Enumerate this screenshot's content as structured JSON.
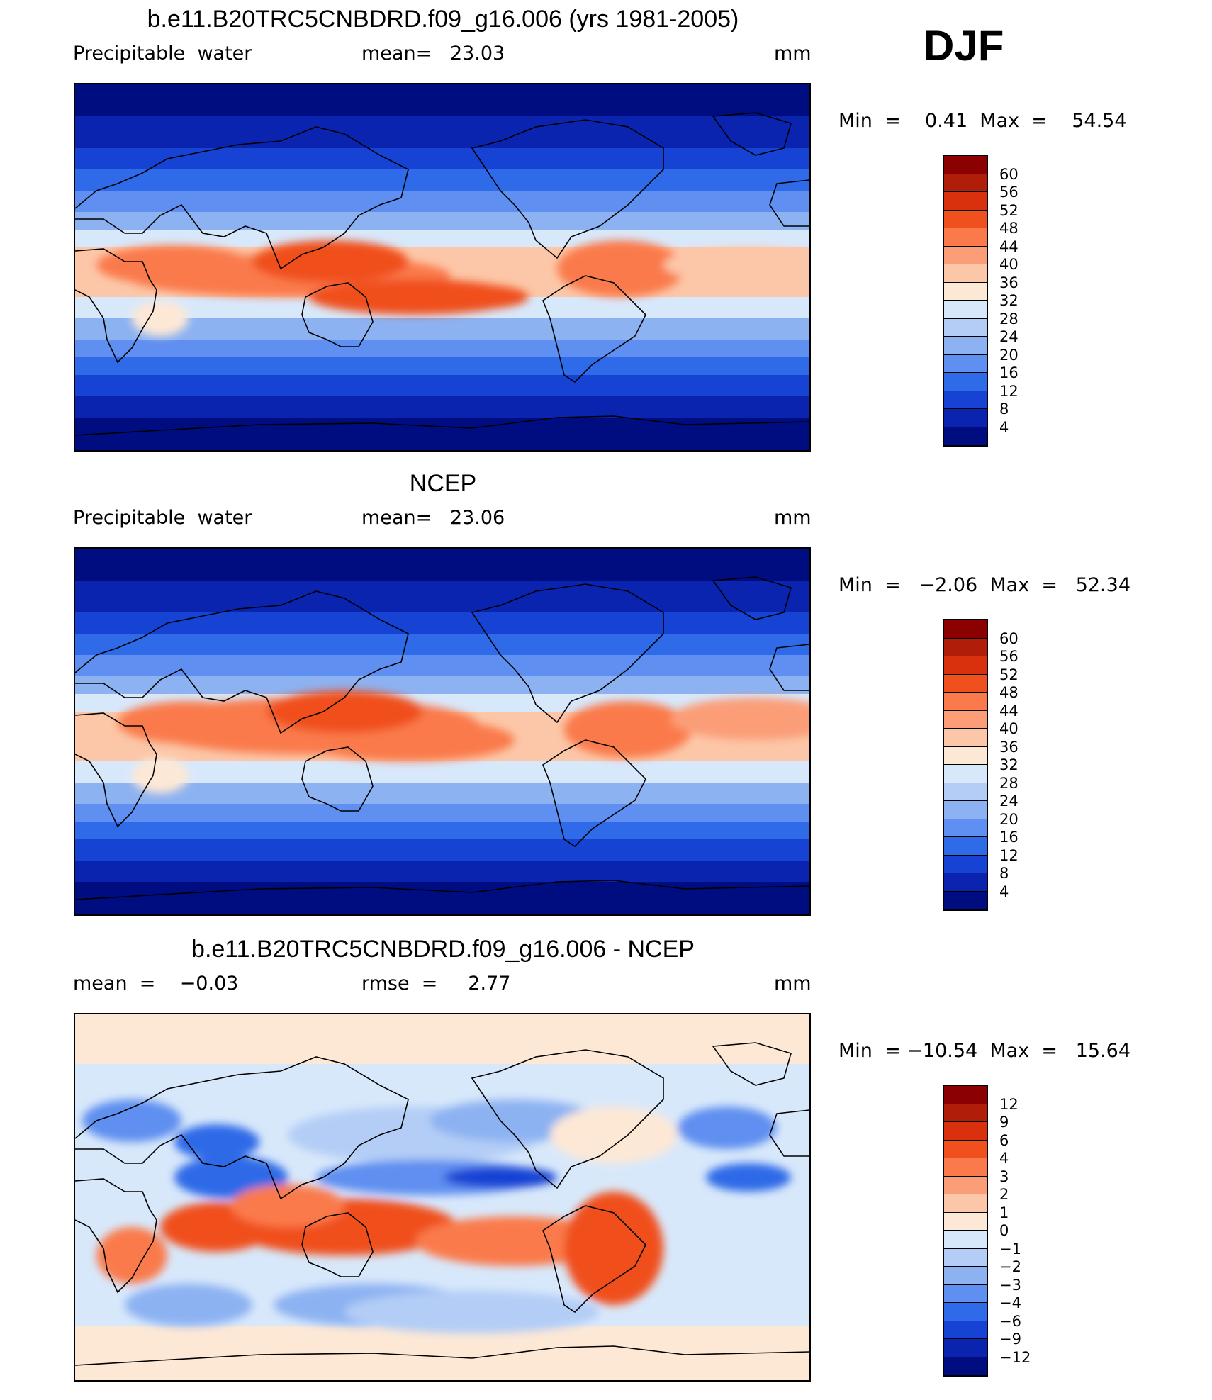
{
  "season": "DJF",
  "panels": [
    {
      "title": "b.e11.B20TRC5CNBDRD.f09_g16.006 (yrs 1981-2005)",
      "left": "Precipitable  water",
      "mid": "mean=   23.03",
      "right": "mm",
      "minmax": "Min  =    0.41  Max  =    54.54",
      "scale": "field"
    },
    {
      "title": "NCEP",
      "left": "Precipitable  water",
      "mid": "mean=   23.06",
      "right": "mm",
      "minmax": "Min  =   −2.06  Max  =   52.34",
      "scale": "field"
    },
    {
      "title": "b.e11.B20TRC5CNBDRD.f09_g16.006 - NCEP",
      "left": "mean  =    −0.03",
      "mid": "rmse  =     2.77",
      "right": "mm",
      "minmax": "Min  = −10.54  Max  =   15.64",
      "scale": "diff"
    }
  ],
  "scales": {
    "field": {
      "labels": [
        "60",
        "56",
        "52",
        "48",
        "44",
        "40",
        "36",
        "32",
        "28",
        "24",
        "20",
        "16",
        "12",
        "8",
        "4"
      ],
      "colors": [
        "#8b0000",
        "#b01e0a",
        "#d9300d",
        "#f04f1e",
        "#fa7a4b",
        "#fb9e78",
        "#fcc7a8",
        "#fde8d6",
        "#d8e8fb",
        "#b3cdf6",
        "#8db2f2",
        "#5f8ff0",
        "#2f6ae8",
        "#1643d4",
        "#0a24b0",
        "#000d80"
      ]
    },
    "diff": {
      "labels": [
        "12",
        "9",
        "6",
        "4",
        "3",
        "2",
        "1",
        "0",
        "−1",
        "−2",
        "−3",
        "−4",
        "−6",
        "−9",
        "−12"
      ],
      "colors": [
        "#8b0000",
        "#b01e0a",
        "#d9300d",
        "#f04f1e",
        "#fa7a4b",
        "#fb9e78",
        "#fcc7a8",
        "#fde8d6",
        "#d8e8fb",
        "#b3cdf6",
        "#8db2f2",
        "#5f8ff0",
        "#2f6ae8",
        "#1643d4",
        "#0a24b0",
        "#000d80"
      ]
    }
  }
}
